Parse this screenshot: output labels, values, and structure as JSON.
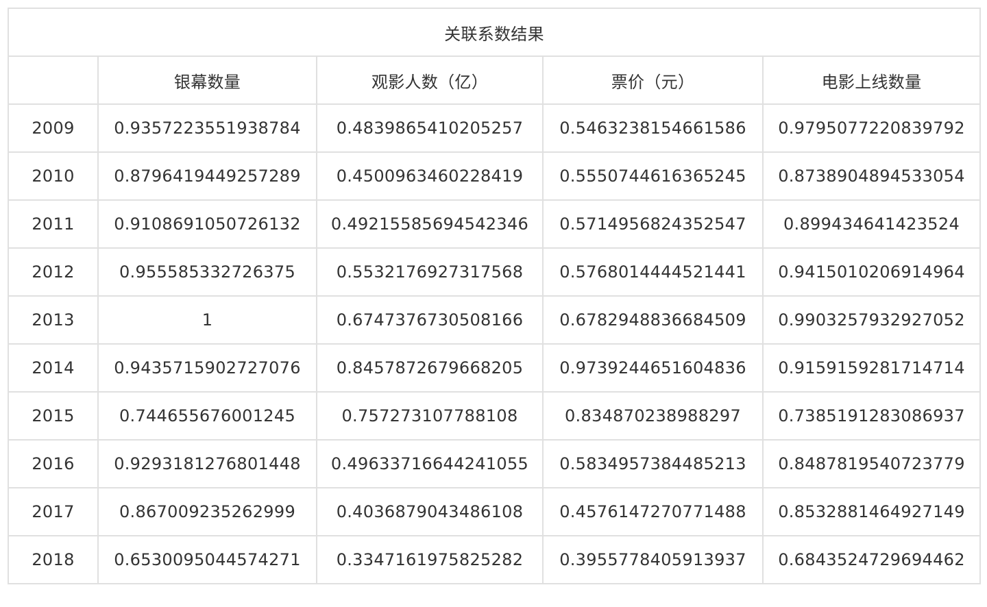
{
  "table": {
    "title": "关联系数结果",
    "columns": [
      "",
      "银幕数量",
      "观影人数（亿）",
      "票价（元）",
      "电影上线数量"
    ],
    "rows": [
      [
        "2009",
        "0.9357223551938784",
        "0.4839865410205257",
        "0.5463238154661586",
        "0.9795077220839792"
      ],
      [
        "2010",
        "0.8796419449257289",
        "0.4500963460228419",
        "0.5550744616365245",
        "0.8738904894533054"
      ],
      [
        "2011",
        "0.9108691050726132",
        "0.49215585694542346",
        "0.5714956824352547",
        "0.899434641423524"
      ],
      [
        "2012",
        "0.955585332726375",
        "0.5532176927317568",
        "0.5768014444521441",
        "0.9415010206914964"
      ],
      [
        "2013",
        "1",
        "0.6747376730508166",
        "0.6782948836684509",
        "0.9903257932927052"
      ],
      [
        "2014",
        "0.9435715902727076",
        "0.8457872679668205",
        "0.9739244651604836",
        "0.9159159281714714"
      ],
      [
        "2015",
        "0.744655676001245",
        "0.757273107788108",
        "0.834870238988297",
        "0.7385191283086937"
      ],
      [
        "2016",
        "0.9293181276801448",
        "0.49633716644241055",
        "0.5834957384485213",
        "0.8487819540723779"
      ],
      [
        "2017",
        "0.867009235262999",
        "0.4036879043486108",
        "0.4576147270771488",
        "0.8532881464927149"
      ],
      [
        "2018",
        "0.6530095044574271",
        "0.3347161975825282",
        "0.3955778405913937",
        "0.6843524729694462"
      ]
    ]
  }
}
